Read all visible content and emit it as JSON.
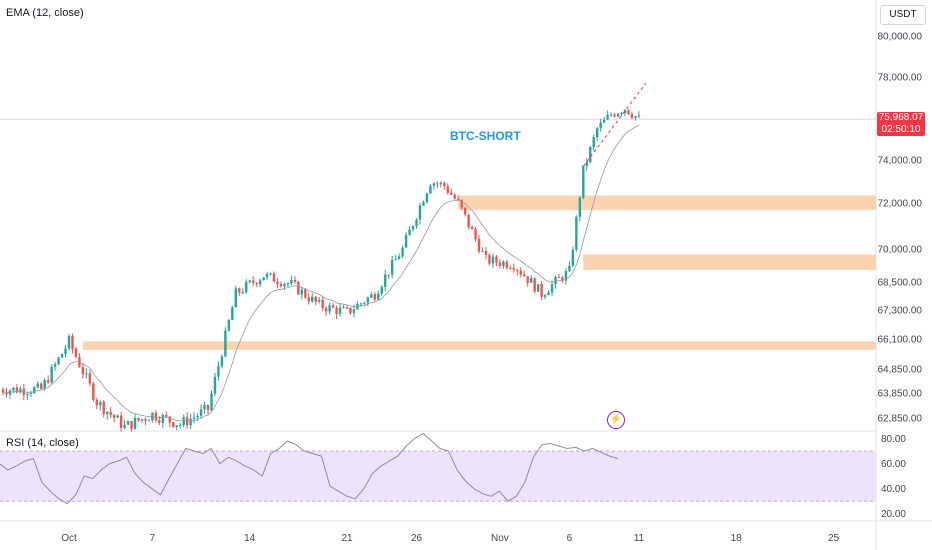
{
  "labels": {
    "ema": "EMA (12, close)",
    "rsi": "RSI (14, close)",
    "currency": "USDT",
    "annotation": "BTC-SHORT",
    "last_price": "75,968.07",
    "countdown": "02:50:10"
  },
  "icons": {
    "flash": "lightning-icon"
  },
  "colors": {
    "up": "#26a69a",
    "down": "#ef5350",
    "zone": "#fcd3b1",
    "ema": "#9598a1",
    "rsi_band": "#ede3fb",
    "rsi_line": "#8e8e93",
    "annotation": "#2196f3",
    "badge": "#f23645"
  },
  "chart_data": [
    {
      "type": "candlestick",
      "title": "",
      "ylim": [
        62300,
        81200
      ],
      "yticks": [
        "80,000.00",
        "78,000.00",
        "74,000.00",
        "72,000.00",
        "70,000.00",
        "68,500.00",
        "67,300.00",
        "66,100.00",
        "64,850.00",
        "63,850.00",
        "62,850.00"
      ],
      "ytick_values": [
        80000,
        78000,
        74000,
        72000,
        70000,
        68500,
        67300,
        66100,
        64850,
        63850,
        62850
      ],
      "xticks": [
        "Oct",
        "7",
        "14",
        "21",
        "26",
        "Nov",
        "6",
        "11",
        "18",
        "25"
      ],
      "last_price": 75968.07,
      "zones": [
        {
          "x_start_day": 28,
          "from": 71700,
          "to": 72350
        },
        {
          "x_start_day": 37,
          "from": 69050,
          "to": 69750
        },
        {
          "x_start_day": 1,
          "from": 65650,
          "to": 66000
        }
      ],
      "trend_line": {
        "from_day": 37,
        "from_price": 73700,
        "to_day": 41.5,
        "to_price": 77700
      },
      "close_series_days": [
        -2,
        0,
        2,
        4,
        6,
        8,
        10,
        12,
        14,
        16,
        18,
        20,
        22,
        24,
        26,
        27,
        28,
        30,
        32,
        34,
        36,
        37,
        38,
        39,
        40,
        41
      ],
      "close_series_values": [
        64000,
        66000,
        63500,
        62500,
        63000,
        62600,
        63200,
        68000,
        68800,
        68400,
        67500,
        67200,
        68000,
        70000,
        73000,
        72800,
        72000,
        69500,
        69300,
        68000,
        69000,
        73500,
        75500,
        76200,
        76500,
        75968
      ]
    },
    {
      "type": "line",
      "title": "RSI (14, close)",
      "ylim": [
        15,
        86
      ],
      "yticks": [
        "80.00",
        "60.00",
        "40.00",
        "20.00"
      ],
      "ytick_values": [
        80,
        60,
        40,
        20
      ],
      "band": [
        30,
        70
      ],
      "values": [
        60,
        55,
        58,
        62,
        64,
        45,
        38,
        32,
        28,
        35,
        50,
        48,
        55,
        60,
        62,
        65,
        52,
        45,
        40,
        35,
        48,
        60,
        72,
        70,
        68,
        72,
        60,
        65,
        62,
        58,
        55,
        50,
        68,
        72,
        78,
        75,
        70,
        68,
        66,
        42,
        38,
        34,
        32,
        40,
        52,
        58,
        62,
        66,
        74,
        80,
        84,
        78,
        72,
        70,
        55,
        46,
        40,
        36,
        34,
        38,
        30,
        34,
        45,
        65,
        75,
        76,
        74,
        72,
        73,
        70,
        72,
        69,
        66,
        64
      ]
    }
  ]
}
